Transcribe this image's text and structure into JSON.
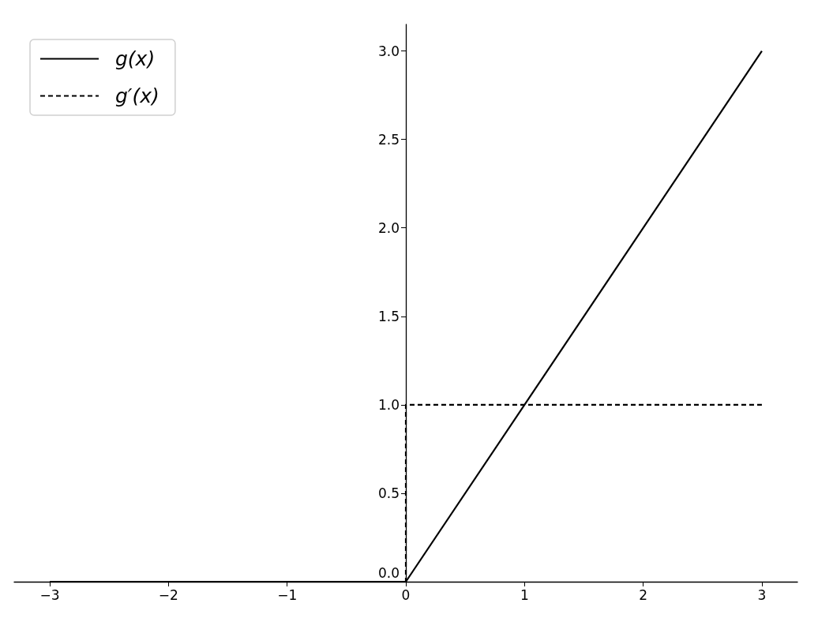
{
  "chart_data": {
    "type": "line",
    "series": [
      {
        "name": "g(x)",
        "color": "#000000",
        "line_style": "solid",
        "x": [
          -3,
          0,
          3
        ],
        "values": [
          0,
          0,
          3
        ]
      },
      {
        "name": "g′(x)",
        "color": "#000000",
        "line_style": "dashed",
        "x": [
          -3,
          0,
          0,
          3
        ],
        "values": [
          0,
          0,
          1,
          1
        ]
      }
    ],
    "xlim": [
      -3.3,
      3.3
    ],
    "xticks": [
      {
        "value": -3,
        "label": "−3"
      },
      {
        "value": -2,
        "label": "−2"
      },
      {
        "value": -1,
        "label": "−1"
      },
      0,
      1,
      2,
      3
    ],
    "ylim": [
      0,
      3.15
    ],
    "yticks": [
      {
        "value": 0,
        "label": "0.0"
      },
      {
        "value": 0.5,
        "label": "0.5"
      },
      {
        "value": 1,
        "label": "1.0"
      },
      {
        "value": 1.5,
        "label": "1.5"
      },
      {
        "value": 2,
        "label": "2.0"
      },
      {
        "value": 2.5,
        "label": "2.5"
      },
      {
        "value": 3,
        "label": "3.0"
      }
    ],
    "grid": false,
    "legend": "top left",
    "marker": "none"
  }
}
